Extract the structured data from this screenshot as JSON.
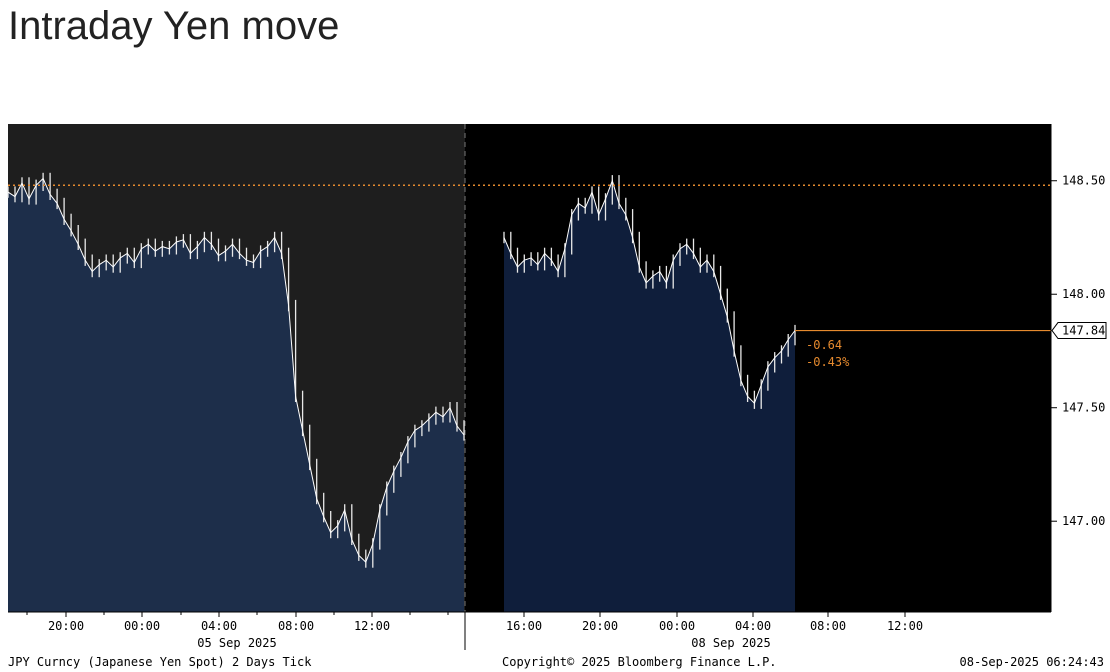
{
  "title": "Intraday Yen move",
  "chart_data": {
    "type": "line",
    "ylim": [
      146.6,
      148.75
    ],
    "y_ticks": [
      "148.50",
      "148.00",
      "147.50",
      "147.00"
    ],
    "y_tick_values": [
      148.5,
      148.0,
      147.5,
      147.0
    ],
    "reference_line": 148.48,
    "last_value_label": "147.84",
    "last_value": 147.84,
    "change_abs": "-0.64",
    "change_pct": "-0.43%",
    "x_ticks_day1": [
      "20:00",
      "00:00",
      "04:00",
      "08:00",
      "12:00"
    ],
    "x_ticks_day2": [
      "16:00",
      "20:00",
      "00:00",
      "04:00",
      "08:00",
      "12:00"
    ],
    "date_labels": [
      "05 Sep 2025",
      "08 Sep 2025"
    ],
    "day1_series": [
      148.45,
      148.43,
      148.49,
      148.42,
      148.48,
      148.51,
      148.44,
      148.4,
      148.33,
      148.28,
      148.22,
      148.15,
      148.1,
      148.13,
      148.15,
      148.12,
      148.16,
      148.18,
      148.14,
      148.2,
      148.22,
      148.19,
      148.21,
      148.2,
      148.23,
      148.24,
      148.18,
      148.21,
      148.25,
      148.22,
      148.17,
      148.19,
      148.22,
      148.18,
      148.15,
      148.14,
      148.19,
      148.21,
      148.25,
      148.18,
      147.95,
      147.55,
      147.4,
      147.25,
      147.1,
      147.02,
      146.95,
      146.98,
      147.05,
      146.92,
      146.85,
      146.82,
      146.9,
      147.05,
      147.15,
      147.22,
      147.28,
      147.35,
      147.4,
      147.42,
      147.45,
      147.48,
      147.46,
      147.5,
      147.42,
      147.38
    ],
    "day2_series": [
      148.25,
      148.18,
      148.12,
      148.15,
      148.16,
      148.13,
      148.18,
      148.15,
      148.1,
      148.2,
      148.35,
      148.4,
      148.38,
      148.45,
      148.35,
      148.42,
      148.5,
      148.4,
      148.35,
      148.25,
      148.12,
      148.05,
      148.08,
      148.1,
      148.05,
      148.15,
      148.2,
      148.22,
      148.18,
      148.12,
      148.15,
      148.1,
      148.0,
      147.9,
      147.75,
      147.62,
      147.55,
      147.52,
      147.6,
      147.68,
      147.72,
      147.75,
      147.8,
      147.84
    ]
  },
  "footer": {
    "left": "JPY Curncy (Japanese Yen Spot) 2 Days  Tick",
    "center": "Copyright© 2025 Bloomberg Finance L.P.",
    "right": "08-Sep-2025 06:24:43"
  },
  "colors": {
    "plot_bg_day1": "#1e1e1e",
    "plot_bg_day2": "#000000",
    "area_day1": "#1d2e4a",
    "area_day2": "#0f1e3b",
    "reference": "#e58a2e",
    "change_text": "#e58a2e"
  }
}
